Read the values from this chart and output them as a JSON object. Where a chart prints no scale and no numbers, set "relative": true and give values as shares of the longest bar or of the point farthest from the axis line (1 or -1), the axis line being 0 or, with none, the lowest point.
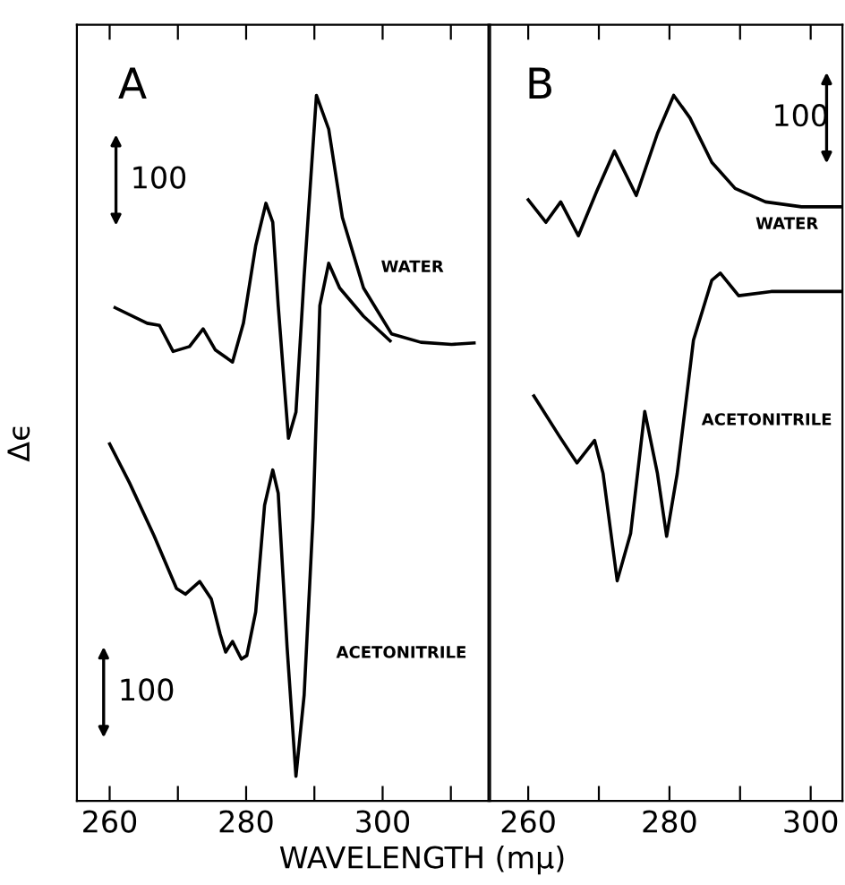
{
  "chart_data": [
    {
      "type": "line",
      "title": "A",
      "xlabel": "WAVELENGTH (mμ)",
      "ylabel": "Δϵ",
      "relative": true,
      "tick_labels": "x",
      "legend": false,
      "grid": false,
      "line_style": "solid",
      "xlim": [
        255.2,
        315.5
      ],
      "xticks": [
        260,
        {
          "value": 270,
          "label": null
        },
        280,
        {
          "value": 290,
          "label": null
        },
        300,
        {
          "value": 310,
          "label": null
        }
      ],
      "series": [
        {
          "name": "WATER",
          "color": "#000000",
          "x": [
            260.8,
            265.5,
            267.3,
            269.3,
            271.7,
            273.7,
            275.5,
            278.0,
            279.6,
            281.4,
            282.9,
            283.9,
            284.7,
            285.7,
            286.2,
            287.3,
            288.5,
            290.3,
            292.1,
            294.1,
            297.2,
            301.3,
            305.6,
            310.1,
            313.4
          ],
          "values": [
            0.699,
            0.677,
            0.674,
            0.637,
            0.644,
            0.669,
            0.639,
            0.622,
            0.677,
            0.787,
            0.847,
            0.82,
            0.702,
            0.576,
            0.514,
            0.551,
            0.744,
            1.0,
            0.952,
            0.827,
            0.727,
            0.662,
            0.65,
            0.647,
            0.649
          ]
        },
        {
          "name": "ACETONITRILE",
          "color": "#000000",
          "x": [
            260.0,
            262.9,
            266.5,
            269.8,
            271.1,
            273.2,
            274.9,
            276.2,
            277.0,
            278.0,
            279.3,
            280.1,
            281.4,
            282.7,
            283.9,
            284.7,
            286.0,
            287.3,
            288.5,
            289.8,
            290.8,
            292.1,
            293.7,
            297.2,
            301.1
          ],
          "values": [
            0.506,
            0.451,
            0.376,
            0.301,
            0.293,
            0.311,
            0.286,
            0.236,
            0.211,
            0.226,
            0.201,
            0.206,
            0.268,
            0.419,
            0.469,
            0.436,
            0.218,
            0.035,
            0.15,
            0.401,
            0.702,
            0.762,
            0.727,
            0.687,
            0.652
          ]
        }
      ],
      "annotations": [
        "100",
        "100"
      ]
    },
    {
      "type": "line",
      "title": "B",
      "relative": true,
      "tick_labels": "x",
      "legend": false,
      "grid": false,
      "line_style": "solid",
      "xlim": [
        254.6,
        304.5
      ],
      "xticks": [
        260,
        {
          "value": 270,
          "label": null
        },
        280,
        {
          "value": 290,
          "label": null
        },
        300
      ],
      "series": [
        {
          "name": "WATER",
          "color": "#000000",
          "x": [
            260.0,
            262.5,
            264.6,
            267.1,
            269.7,
            272.2,
            275.3,
            278.3,
            280.6,
            282.9,
            286.0,
            289.3,
            293.6,
            298.7,
            304.5
          ],
          "values": [
            0.852,
            0.82,
            0.849,
            0.801,
            0.864,
            0.921,
            0.858,
            0.946,
            1.0,
            0.968,
            0.905,
            0.868,
            0.849,
            0.842,
            0.842
          ]
        },
        {
          "name": "ACETONITRILE",
          "color": "#000000",
          "x": [
            260.8,
            264.4,
            266.9,
            269.4,
            270.6,
            272.6,
            274.5,
            276.5,
            278.3,
            279.6,
            281.1,
            283.4,
            286.0,
            287.2,
            289.8,
            294.4,
            304.5
          ],
          "values": [
            0.574,
            0.517,
            0.479,
            0.511,
            0.464,
            0.312,
            0.379,
            0.552,
            0.464,
            0.375,
            0.464,
            0.653,
            0.738,
            0.748,
            0.716,
            0.722,
            0.722
          ]
        }
      ],
      "annotations": [
        "100"
      ]
    }
  ]
}
